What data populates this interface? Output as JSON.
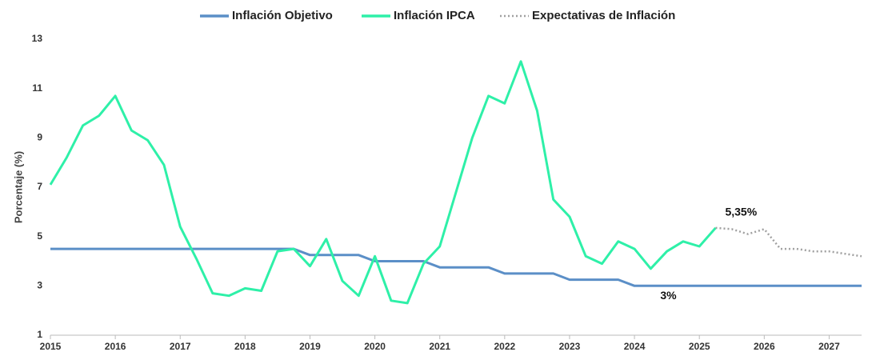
{
  "chart_data": {
    "type": "line",
    "y_label": "Porcentaje (%)",
    "categories": [
      "2015",
      null,
      null,
      null,
      "2016",
      null,
      null,
      null,
      "2017",
      null,
      null,
      null,
      "2018",
      null,
      null,
      null,
      "2019",
      null,
      null,
      null,
      "2020",
      null,
      null,
      null,
      "2021",
      null,
      null,
      null,
      "2022",
      null,
      null,
      null,
      "2023",
      null,
      null,
      null,
      "2024",
      null,
      null,
      null,
      "2025",
      null,
      null,
      null,
      "2026",
      null,
      null,
      null,
      "2027",
      null,
      null
    ],
    "series": [
      {
        "name": "Inflación Objetivo",
        "color": "#5b8fc7",
        "dash": "solid",
        "values": [
          4.5,
          4.5,
          4.5,
          4.5,
          4.5,
          4.5,
          4.5,
          4.5,
          4.5,
          4.5,
          4.5,
          4.5,
          4.5,
          4.5,
          4.5,
          4.5,
          4.25,
          4.25,
          4.25,
          4.25,
          4.0,
          4.0,
          4.0,
          4.0,
          3.75,
          3.75,
          3.75,
          3.75,
          3.5,
          3.5,
          3.5,
          3.5,
          3.25,
          3.25,
          3.25,
          3.25,
          3.0,
          3.0,
          3.0,
          3.0,
          3.0,
          3.0,
          3.0,
          3.0,
          3.0,
          3.0,
          3.0,
          3.0,
          3.0,
          3.0,
          3.0
        ],
        "value_labels": [
          null,
          null,
          null,
          null,
          null,
          null,
          null,
          null,
          null,
          null,
          null,
          null,
          null,
          null,
          null,
          null,
          null,
          null,
          null,
          null,
          null,
          null,
          null,
          null,
          null,
          null,
          null,
          null,
          null,
          null,
          null,
          null,
          null,
          null,
          null,
          null,
          null,
          "3%",
          null,
          null,
          null,
          null,
          null,
          null,
          null,
          null,
          null,
          null,
          null,
          null,
          null
        ]
      },
      {
        "name": "Inflación IPCA",
        "color": "#2ef0a8",
        "dash": "solid",
        "values": [
          7.1,
          8.2,
          9.5,
          9.9,
          10.7,
          9.3,
          8.9,
          7.9,
          5.4,
          4.1,
          2.7,
          2.6,
          2.9,
          2.8,
          4.4,
          4.5,
          3.8,
          4.9,
          3.2,
          2.6,
          4.2,
          2.4,
          2.3,
          3.9,
          4.6,
          6.8,
          9.0,
          10.7,
          10.4,
          12.1,
          10.1,
          6.5,
          5.8,
          4.2,
          3.9,
          4.8,
          4.5,
          3.7,
          4.4,
          4.8,
          4.6,
          5.35,
          null,
          null,
          null,
          null,
          null,
          null,
          null,
          null,
          null
        ],
        "value_labels": [
          null,
          null,
          null,
          null,
          null,
          null,
          null,
          null,
          null,
          null,
          null,
          null,
          null,
          null,
          null,
          null,
          null,
          null,
          null,
          null,
          null,
          null,
          null,
          null,
          null,
          null,
          null,
          null,
          null,
          null,
          null,
          null,
          null,
          null,
          null,
          null,
          null,
          null,
          null,
          null,
          null,
          "5,35%",
          null,
          null,
          null,
          null,
          null,
          null,
          null,
          null,
          null
        ]
      },
      {
        "name": "Expectativas de Inflación",
        "color": "#a0a0a0",
        "dash": "dotted",
        "values": [
          null,
          null,
          null,
          null,
          null,
          null,
          null,
          null,
          null,
          null,
          null,
          null,
          null,
          null,
          null,
          null,
          null,
          null,
          null,
          null,
          null,
          null,
          null,
          null,
          null,
          null,
          null,
          null,
          null,
          null,
          null,
          null,
          null,
          null,
          null,
          null,
          null,
          null,
          null,
          null,
          null,
          5.35,
          5.3,
          5.1,
          5.3,
          4.5,
          4.5,
          4.4,
          4.4,
          4.3,
          4.2
        ]
      }
    ],
    "ylim": [
      1,
      13
    ],
    "yticks": [
      1,
      3,
      5,
      7,
      9,
      11,
      13
    ],
    "grid": false
  }
}
